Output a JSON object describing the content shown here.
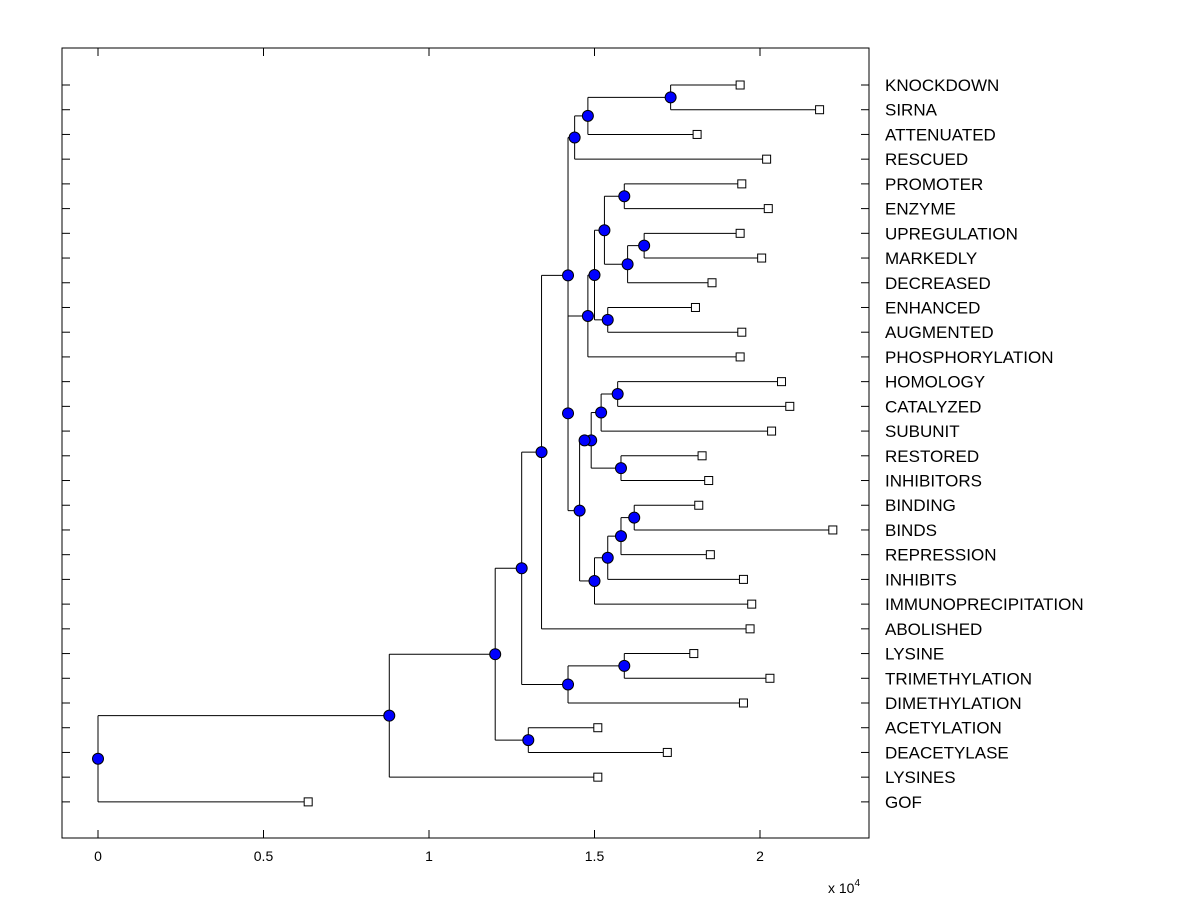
{
  "chart_data": {
    "type": "dendrogram",
    "x_multiplier_label": "x 10",
    "x_multiplier_exponent": "4",
    "xlim": [
      -0.11,
      2.33
    ],
    "x_ticks": [
      {
        "value": 0,
        "label": "0"
      },
      {
        "value": 0.5,
        "label": "0.5"
      },
      {
        "value": 1,
        "label": "1"
      },
      {
        "value": 1.5,
        "label": "1.5"
      },
      {
        "value": 2,
        "label": "2"
      }
    ],
    "leaf_labels": [
      "KNOCKDOWN",
      "SIRNA",
      "ATTENUATED",
      "RESCUED",
      "PROMOTER",
      "ENZYME",
      "UPREGULATION",
      "MARKEDLY",
      "DECREASED",
      "ENHANCED",
      "AUGMENTED",
      "PHOSPHORYLATION",
      "HOMOLOGY",
      "CATALYZED",
      "SUBUNIT",
      "RESTORED",
      "INHIBITORS",
      "BINDING",
      "BINDS",
      "REPRESSION",
      "INHIBITS",
      "IMMUNOPRECIPITATION",
      "ABOLISHED",
      "LYSINE",
      "TRIMETHYLATION",
      "DIMETHYLATION",
      "ACETYLATION",
      "DEACETYLASE",
      "LYSINES",
      "GOF"
    ],
    "leaf_x": [
      1.94,
      2.18,
      1.81,
      2.02,
      1.945,
      2.025,
      1.94,
      2.005,
      1.855,
      1.805,
      1.945,
      1.94,
      2.065,
      2.09,
      2.035,
      1.825,
      1.845,
      1.815,
      2.22,
      1.85,
      1.95,
      1.975,
      1.97,
      1.8,
      2.03,
      1.95,
      1.51,
      1.72,
      1.51,
      0.635
    ],
    "nodes": [
      {
        "id": "n_kd_si",
        "x": 1.73,
        "children": [
          0,
          1
        ]
      },
      {
        "id": "n_sirna_att",
        "x": 1.48,
        "children": [
          "n_kd_si",
          2
        ]
      },
      {
        "id": "n_top4",
        "x": 1.44,
        "children": [
          "n_sirna_att",
          3
        ]
      },
      {
        "id": "n_prom_enz",
        "x": 1.59,
        "children": [
          4,
          5
        ]
      },
      {
        "id": "n_up_mark",
        "x": 1.65,
        "children": [
          6,
          7
        ]
      },
      {
        "id": "n_mark_dec",
        "x": 1.6,
        "children": [
          "n_up_mark",
          8
        ]
      },
      {
        "id": "n_enz_dec",
        "x": 1.53,
        "children": [
          "n_prom_enz",
          "n_mark_dec"
        ]
      },
      {
        "id": "n_enh_aug",
        "x": 1.54,
        "children": [
          9,
          10
        ]
      },
      {
        "id": "n_dec_aug",
        "x": 1.5,
        "children": [
          "n_enz_dec",
          "n_enh_aug"
        ]
      },
      {
        "id": "n_enh_phos",
        "x": 1.48,
        "children": [
          "n_dec_aug",
          11
        ]
      },
      {
        "id": "n_hom_cat",
        "x": 1.57,
        "children": [
          12,
          13
        ]
      },
      {
        "id": "n_cat_sub",
        "x": 1.52,
        "children": [
          "n_hom_cat",
          14
        ]
      },
      {
        "id": "n_res_inh",
        "x": 1.58,
        "children": [
          15,
          16
        ]
      },
      {
        "id": "n_sub_res",
        "x": 1.49,
        "children": [
          "n_cat_sub",
          "n_res_inh"
        ]
      },
      {
        "id": "n_hom_res",
        "x": 1.47,
        "children": [
          "n_sub_res"
        ]
      },
      {
        "id": "n_bind_binds",
        "x": 1.62,
        "children": [
          17,
          18
        ]
      },
      {
        "id": "n_binds_rep",
        "x": 1.58,
        "children": [
          "n_bind_binds",
          19
        ]
      },
      {
        "id": "n_rep_inh",
        "x": 1.54,
        "children": [
          "n_binds_rep",
          20
        ]
      },
      {
        "id": "n_inh_imm",
        "x": 1.5,
        "children": [
          "n_rep_inh",
          21
        ]
      },
      {
        "id": "n_res_imm",
        "x": 1.455,
        "children": [
          "n_hom_res",
          "n_inh_imm"
        ]
      },
      {
        "id": "n_phos_imm",
        "x": 1.42,
        "children": [
          "n_enh_phos",
          "n_res_imm"
        ]
      },
      {
        "id": "n_big",
        "x": 1.42,
        "children": [
          "n_top4",
          "n_phos_imm"
        ]
      },
      {
        "id": "n_big_abol",
        "x": 1.34,
        "children": [
          "n_big",
          22
        ]
      },
      {
        "id": "n_lys_tri",
        "x": 1.59,
        "children": [
          23,
          24
        ]
      },
      {
        "id": "n_tri_dim",
        "x": 1.42,
        "children": [
          "n_lys_tri",
          25
        ]
      },
      {
        "id": "n_abol_dim",
        "x": 1.28,
        "children": [
          "n_big_abol",
          "n_tri_dim"
        ]
      },
      {
        "id": "n_ace_deac",
        "x": 1.3,
        "children": [
          26,
          27
        ]
      },
      {
        "id": "n_dim_deac",
        "x": 1.2,
        "children": [
          "n_abol_dim",
          "n_ace_deac"
        ]
      },
      {
        "id": "n_deac_lys",
        "x": 0.88,
        "children": [
          "n_dim_deac",
          28
        ]
      },
      {
        "id": "n_root",
        "x": 0.0,
        "children": [
          "n_deac_lys",
          29
        ]
      }
    ]
  }
}
